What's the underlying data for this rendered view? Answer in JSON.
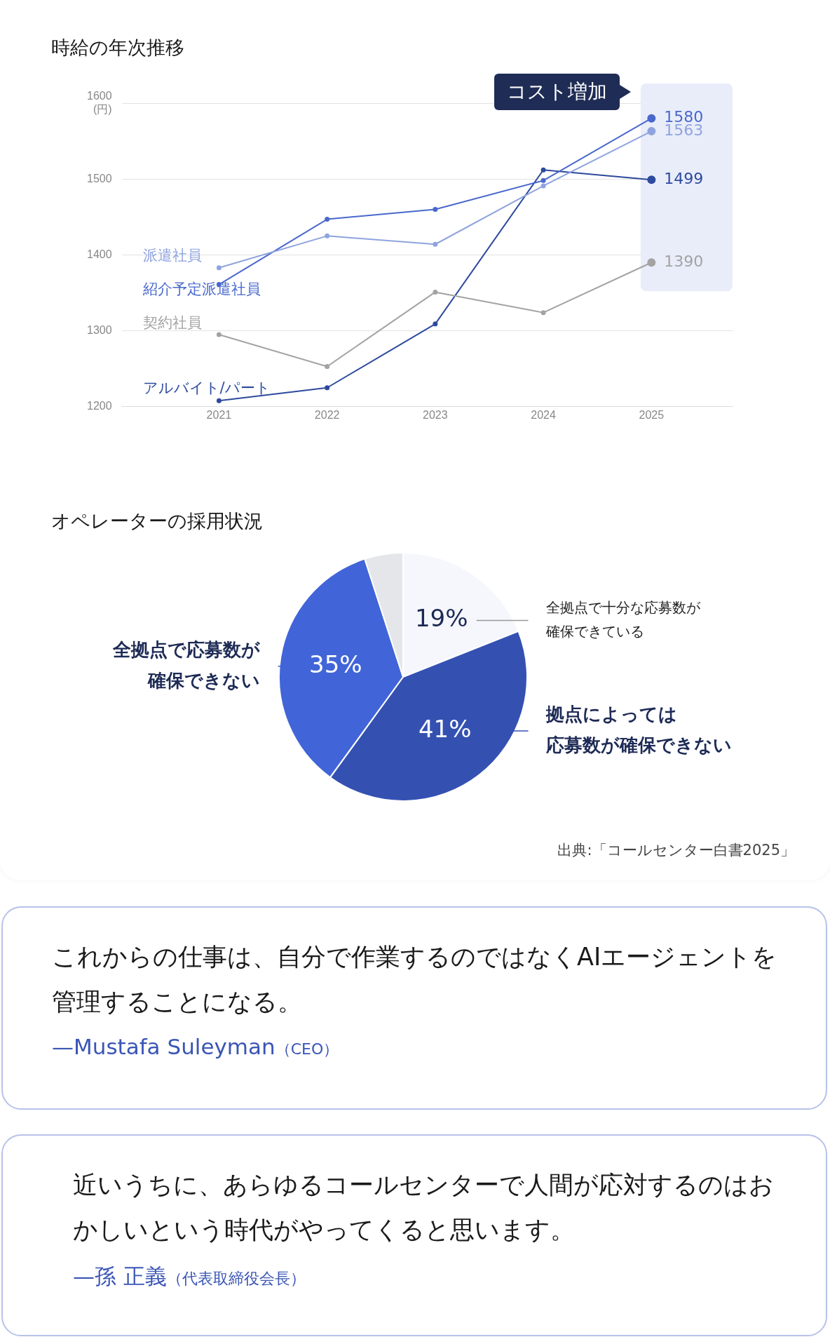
{
  "chart_data": [
    {
      "type": "line",
      "title": "時給の年次推移",
      "x": [
        2021,
        2022,
        2023,
        2024,
        2025
      ],
      "xlim": [
        2020.1,
        2025.75
      ],
      "xticks": [
        2021,
        2022,
        2023,
        2024,
        2025
      ],
      "ylim": [
        1200,
        1600
      ],
      "yticks": [
        1200,
        1300,
        1400,
        1500,
        {
          "value": 1600,
          "label": "1600\n(円)"
        }
      ],
      "grid": "y",
      "marker": "circle",
      "annotations": [
        "コスト増加"
      ],
      "bands": [
        {
          "axis": "x",
          "from": 2024.9,
          "to": 2025.75,
          "color": "#e9edfa"
        }
      ],
      "series": [
        {
          "name": "契約社員",
          "color": "#a3a3a3",
          "values": [
            1295,
            1253,
            1351,
            1324,
            1390
          ],
          "value_labels": [
            null,
            null,
            null,
            null,
            "1390"
          ]
        },
        {
          "name": "派遣社員",
          "color": "#8fa3df",
          "values": [
            1383,
            1425,
            1414,
            1491,
            1563
          ],
          "value_labels": [
            null,
            null,
            null,
            null,
            "1563"
          ]
        },
        {
          "name": "紹介予定派遣社員",
          "color": "#4a68cc",
          "values": [
            1361,
            1447,
            1460,
            1498,
            1580
          ],
          "value_labels": [
            null,
            null,
            null,
            null,
            "1580"
          ]
        },
        {
          "name": "アルバイト/パート",
          "color": "#2e4a9e",
          "values": [
            1208,
            1225,
            1309,
            1512,
            1499
          ],
          "value_labels": [
            null,
            null,
            null,
            null,
            "1499"
          ]
        }
      ]
    },
    {
      "type": "pie",
      "title": "オペレーターの採用状況",
      "categories": [
        "全拠点で十分な応募数が確保できている",
        "拠点によっては応募数が確保できない",
        "全拠点で応募数が確保できない",
        null
      ],
      "values": [
        19,
        41,
        35,
        5
      ],
      "colors": [
        "#f5f7fc",
        "#3451b2",
        "#4165d8",
        "#e4e6ea"
      ],
      "value_labels": [
        "19%",
        "41%",
        "35%",
        null
      ],
      "annotations": [
        "出典:「コールセンター白書2025」"
      ]
    },
    {
      "type": "other",
      "title": "これからの仕事は、自分で作業するのではなくAIエージェントを管理することになる。",
      "annotations": [
        "—Mustafa Suleyman",
        "（CEO）"
      ]
    },
    {
      "type": "other",
      "title": "近いうちに、あらゆるコールセンターで人間が応対するのはおかしいという時代がやってくると思います。",
      "annotations": [
        "—孫 正義",
        "（代表取締役会長）"
      ]
    }
  ]
}
